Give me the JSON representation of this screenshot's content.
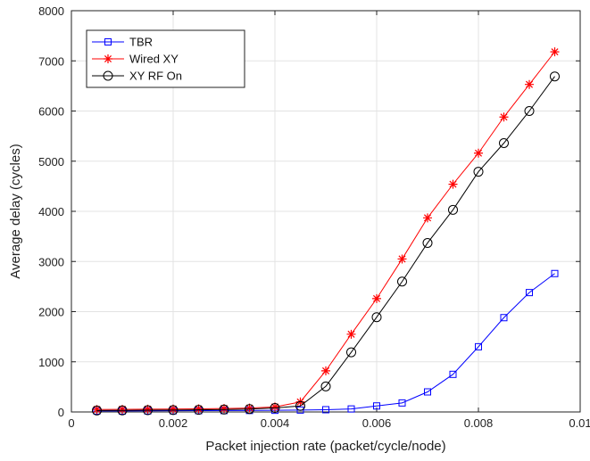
{
  "chart_data": {
    "type": "line",
    "xlabel": "Packet injection rate (packet/cycle/node)",
    "ylabel": "Average delay (cycles)",
    "xlim": [
      0,
      0.01
    ],
    "ylim": [
      0,
      8000
    ],
    "x_ticks": [
      0,
      0.002,
      0.004,
      0.006,
      0.008,
      0.01
    ],
    "x_tick_labels": [
      "0",
      "0.002",
      "0.004",
      "0.006",
      "0.008",
      "0.01"
    ],
    "y_ticks": [
      0,
      1000,
      2000,
      3000,
      4000,
      5000,
      6000,
      7000,
      8000
    ],
    "y_tick_labels": [
      "0",
      "1000",
      "2000",
      "3000",
      "4000",
      "5000",
      "6000",
      "7000",
      "8000"
    ],
    "grid": true,
    "legend_position": "top-left",
    "x": [
      0.0005,
      0.001,
      0.0015,
      0.002,
      0.0025,
      0.003,
      0.0035,
      0.004,
      0.0045,
      0.005,
      0.0055,
      0.006,
      0.0065,
      0.007,
      0.0075,
      0.008,
      0.0085,
      0.009,
      0.0095
    ],
    "series": [
      {
        "name": "TBR",
        "color": "#0000ff",
        "marker": "square",
        "values": [
          20,
          20,
          22,
          24,
          26,
          28,
          30,
          33,
          38,
          45,
          60,
          120,
          180,
          400,
          750,
          1300,
          1880,
          2380,
          2760
        ]
      },
      {
        "name": "Wired XY",
        "color": "#ff0000",
        "marker": "asterisk",
        "values": [
          50,
          52,
          55,
          58,
          62,
          68,
          78,
          100,
          200,
          820,
          1550,
          2260,
          3050,
          3870,
          4540,
          5160,
          5880,
          6530,
          7180
        ]
      },
      {
        "name": "XY RF On",
        "color": "#000000",
        "marker": "circle",
        "values": [
          30,
          32,
          35,
          38,
          42,
          48,
          58,
          80,
          120,
          510,
          1190,
          1890,
          2600,
          3370,
          4030,
          4790,
          5360,
          6000,
          6690
        ]
      }
    ]
  }
}
